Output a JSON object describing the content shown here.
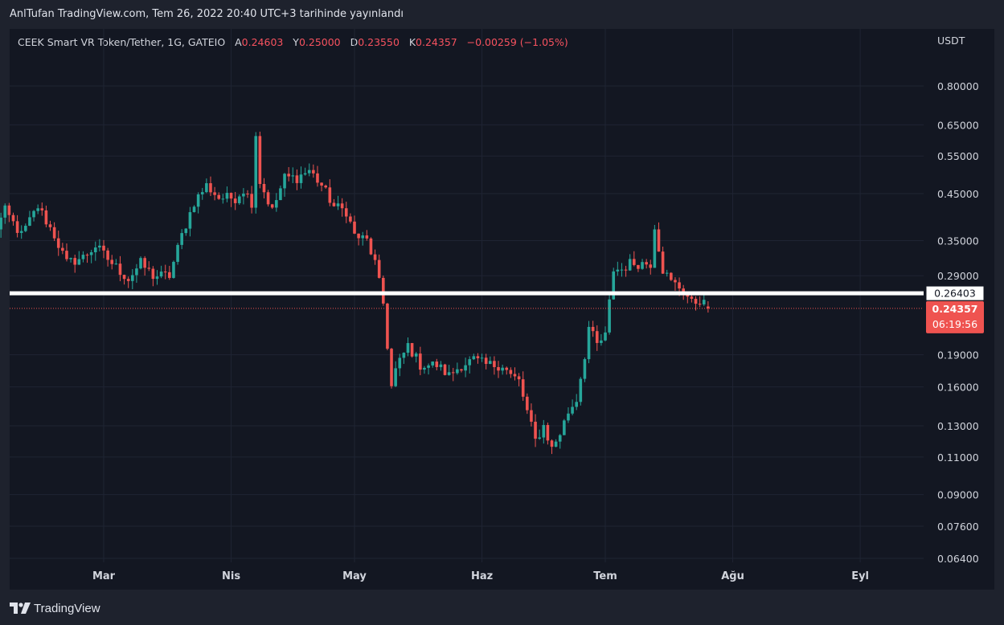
{
  "header": {
    "published": "AnlTufan TradingView.com, Tem 26, 2022 20:40 UTC+3 tarihinde yayınlandı"
  },
  "legend": {
    "symbol": "CEEK Smart VR Token/Tether, 1G, GATEIO",
    "open_label": "A",
    "open": "0.24603",
    "high_label": "Y",
    "high": "0.25000",
    "low_label": "D",
    "low": "0.23550",
    "close_label": "K",
    "close": "0.24357",
    "change": "−0.00259 (−1.05%)"
  },
  "footer": {
    "brand": "TradingView"
  },
  "colors": {
    "up": "#26a69a",
    "down": "#ef5350",
    "level": "#ffffff",
    "background": "#131722"
  },
  "chart_data": {
    "type": "candlestick",
    "currency": "USDT",
    "y_scale": "log",
    "y_ticks": [
      "0.80000",
      "0.65000",
      "0.55000",
      "0.45000",
      "0.35000",
      "0.29000",
      "0.19000",
      "0.16000",
      "0.13000",
      "0.11000",
      "0.09000",
      "0.07600",
      "0.06400"
    ],
    "x_ticks": [
      "Mar",
      "Nis",
      "May",
      "Haz",
      "Tem",
      "Ağu",
      "Eyl"
    ],
    "x_tick_dates": [
      "2022-03-01",
      "2022-04-01",
      "2022-05-01",
      "2022-06-01",
      "2022-07-01",
      "2022-08-01",
      "2022-09-01"
    ],
    "start_date": "2022-02-02",
    "end_date": "2022-07-26",
    "horizontal_level": {
      "value": 0.26403,
      "label": "0.26403"
    },
    "last_price": {
      "value": 0.24357,
      "label": "0.24357",
      "countdown": "06:19:56"
    },
    "close_anchors": [
      [
        "2022-02-02",
        0.36
      ],
      [
        "2022-02-05",
        0.41
      ],
      [
        "2022-02-09",
        0.36
      ],
      [
        "2022-02-13",
        0.42
      ],
      [
        "2022-02-17",
        0.36
      ],
      [
        "2022-02-20",
        0.31
      ],
      [
        "2022-02-24",
        0.32
      ],
      [
        "2022-02-27",
        0.34
      ],
      [
        "2022-03-03",
        0.31
      ],
      [
        "2022-03-07",
        0.285
      ],
      [
        "2022-03-10",
        0.31
      ],
      [
        "2022-03-13",
        0.29
      ],
      [
        "2022-03-17",
        0.29
      ],
      [
        "2022-03-20",
        0.36
      ],
      [
        "2022-03-23",
        0.43
      ],
      [
        "2022-03-26",
        0.47
      ],
      [
        "2022-03-29",
        0.44
      ],
      [
        "2022-04-02",
        0.44
      ],
      [
        "2022-04-04",
        0.46
      ],
      [
        "2022-04-06",
        0.43
      ],
      [
        "2022-04-07",
        0.62
      ],
      [
        "2022-04-08",
        0.48
      ],
      [
        "2022-04-11",
        0.41
      ],
      [
        "2022-04-14",
        0.49
      ],
      [
        "2022-04-17",
        0.49
      ],
      [
        "2022-04-20",
        0.51
      ],
      [
        "2022-04-23",
        0.47
      ],
      [
        "2022-04-26",
        0.42
      ],
      [
        "2022-04-29",
        0.41
      ],
      [
        "2022-05-01",
        0.36
      ],
      [
        "2022-05-04",
        0.35
      ],
      [
        "2022-05-06",
        0.31
      ],
      [
        "2022-05-08",
        0.25
      ],
      [
        "2022-05-10",
        0.16
      ],
      [
        "2022-05-11",
        0.175
      ],
      [
        "2022-05-14",
        0.2
      ],
      [
        "2022-05-17",
        0.18
      ],
      [
        "2022-05-21",
        0.18
      ],
      [
        "2022-05-24",
        0.17
      ],
      [
        "2022-05-27",
        0.18
      ],
      [
        "2022-05-30",
        0.185
      ],
      [
        "2022-06-02",
        0.18
      ],
      [
        "2022-06-06",
        0.18
      ],
      [
        "2022-06-08",
        0.17
      ],
      [
        "2022-06-10",
        0.165
      ],
      [
        "2022-06-12",
        0.14
      ],
      [
        "2022-06-14",
        0.12
      ],
      [
        "2022-06-16",
        0.13
      ],
      [
        "2022-06-18",
        0.115
      ],
      [
        "2022-06-20",
        0.125
      ],
      [
        "2022-06-22",
        0.14
      ],
      [
        "2022-06-24",
        0.15
      ],
      [
        "2022-06-26",
        0.19
      ],
      [
        "2022-06-27",
        0.22
      ],
      [
        "2022-06-29",
        0.2
      ],
      [
        "2022-07-01",
        0.21
      ],
      [
        "2022-07-03",
        0.3
      ],
      [
        "2022-07-05",
        0.3
      ],
      [
        "2022-07-07",
        0.31
      ],
      [
        "2022-07-10",
        0.31
      ],
      [
        "2022-07-12",
        0.31
      ],
      [
        "2022-07-13",
        0.38
      ],
      [
        "2022-07-15",
        0.3
      ],
      [
        "2022-07-17",
        0.28
      ],
      [
        "2022-07-20",
        0.27
      ],
      [
        "2022-07-22",
        0.25
      ],
      [
        "2022-07-24",
        0.255
      ],
      [
        "2022-07-26",
        0.24357
      ]
    ]
  }
}
